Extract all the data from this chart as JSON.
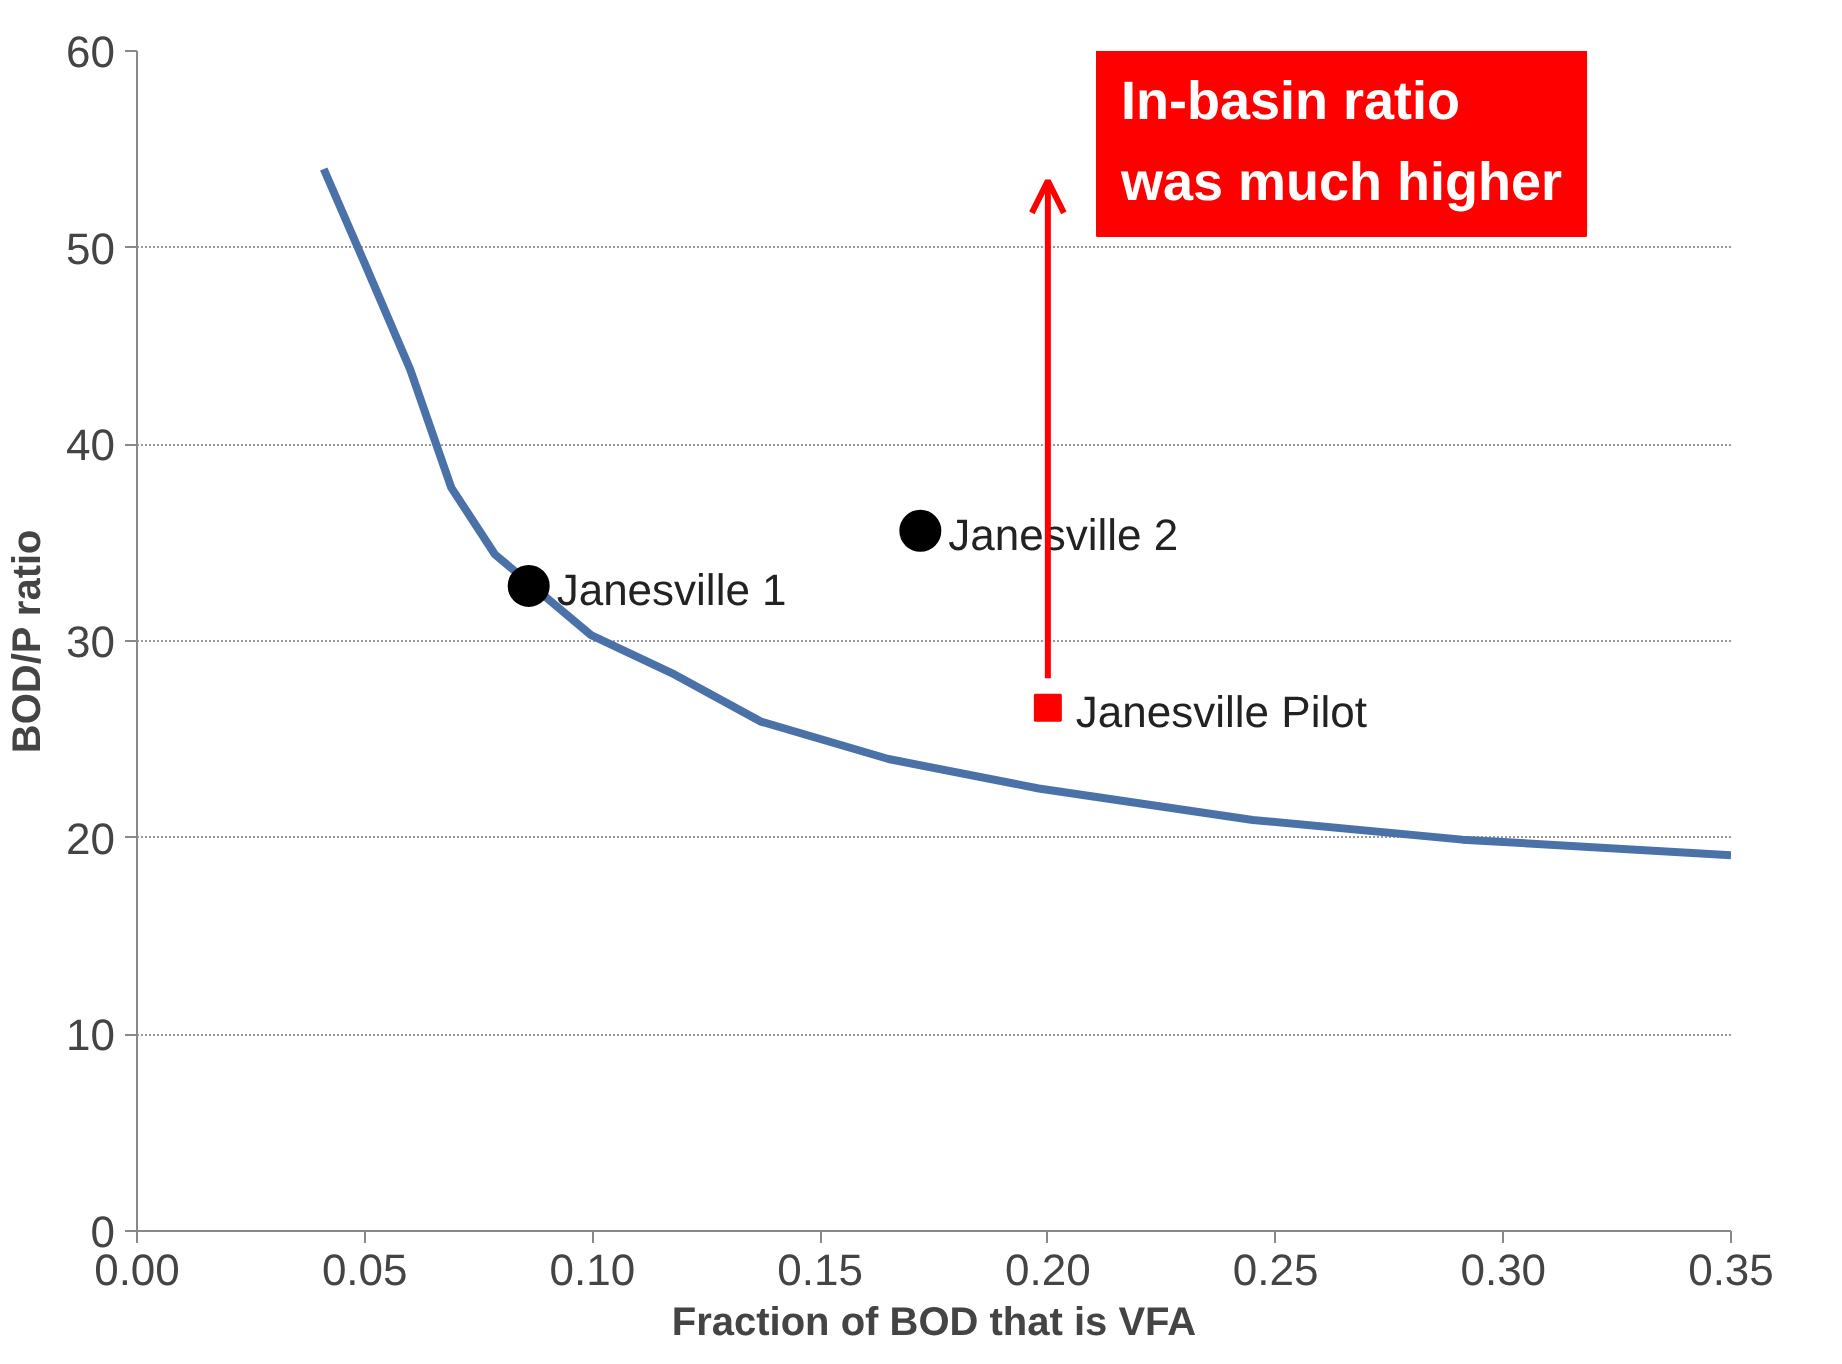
{
  "chart_data": {
    "type": "line",
    "xlabel": "Fraction of BOD that is VFA",
    "ylabel": "BOD/P ratio",
    "xlim": [
      0,
      0.35
    ],
    "xticks": [
      {
        "value": 0,
        "label": "0.00"
      },
      {
        "value": 0.05,
        "label": "0.05"
      },
      {
        "value": 0.1,
        "label": "0.10"
      },
      {
        "value": 0.15,
        "label": "0.15"
      },
      {
        "value": 0.2,
        "label": "0.20"
      },
      {
        "value": 0.25,
        "label": "0.25"
      },
      {
        "value": 0.3,
        "label": "0.30"
      },
      {
        "value": 0.35,
        "label": "0.35"
      }
    ],
    "ylim": [
      0,
      60
    ],
    "yticks": [
      0,
      10,
      20,
      30,
      40,
      50,
      60
    ],
    "grid": "y",
    "legend": false,
    "marker": "none",
    "series": [
      {
        "color": "#4a72a8",
        "x": [
          0.041,
          0.05,
          0.06,
          0.069,
          0.0786,
          0.0997,
          0.118,
          0.137,
          0.165,
          0.198,
          0.245,
          0.291,
          0.35
        ],
        "values": [
          54,
          49.2,
          43.8,
          37.8,
          34.4,
          30.3,
          28.3,
          25.9,
          24.0,
          22.5,
          20.9,
          19.9,
          19.1
        ]
      },
      {
        "type": "scatter",
        "name": "Janesville 1",
        "marker": "circle",
        "color": "#000000",
        "x": [
          0.086
        ],
        "values": [
          32.8
        ]
      },
      {
        "type": "scatter",
        "name": "Janesville 2",
        "marker": "circle",
        "color": "#000000",
        "x": [
          0.172
        ],
        "values": [
          35.6
        ]
      },
      {
        "type": "scatter",
        "name": "Janesville Pilot",
        "marker": "square",
        "color": "#ff0000",
        "x": [
          0.2
        ],
        "values": [
          26.6
        ]
      }
    ],
    "annotations": [
      "In-basin ratio was much higher"
    ]
  }
}
